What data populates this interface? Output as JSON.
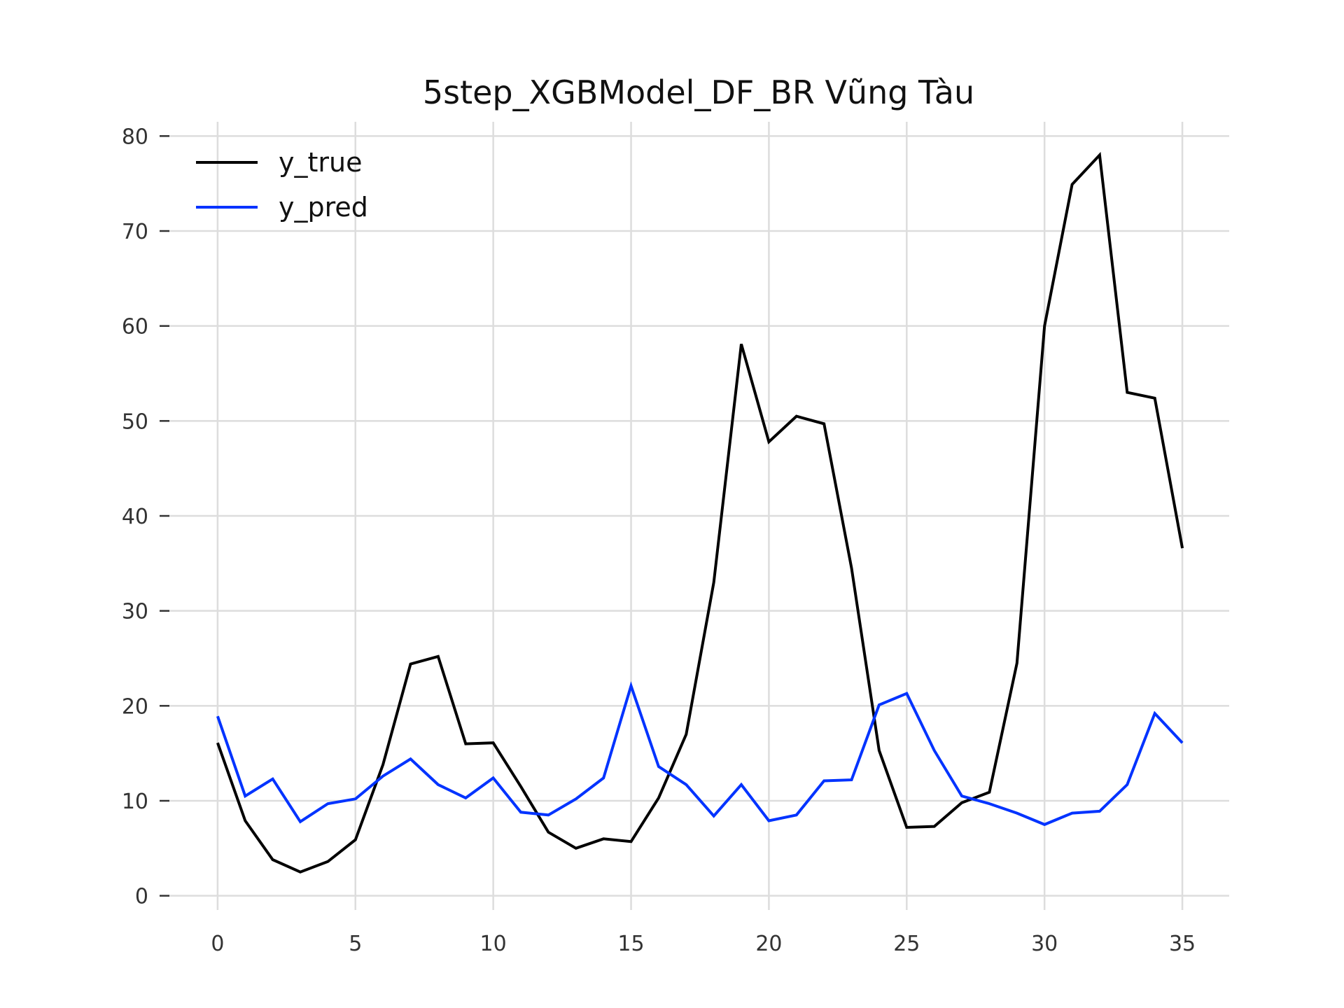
{
  "chart_data": {
    "type": "line",
    "title": "5step_XGBModel_DF_BR Vũng Tàu",
    "xlabel": "",
    "ylabel": "",
    "xlim": [
      -1.8,
      36.7
    ],
    "ylim": [
      -1.5,
      81.5
    ],
    "x_ticks": [
      0,
      5,
      10,
      15,
      20,
      25,
      30,
      35
    ],
    "y_ticks": [
      0,
      10,
      20,
      30,
      40,
      50,
      60,
      70,
      80
    ],
    "grid": true,
    "legend_position": "top-left",
    "x": [
      0,
      1,
      2,
      3,
      4,
      5,
      6,
      7,
      8,
      9,
      10,
      11,
      12,
      13,
      14,
      15,
      16,
      17,
      18,
      19,
      20,
      21,
      22,
      23,
      24,
      25,
      26,
      27,
      28,
      29,
      30,
      31,
      32,
      33,
      34,
      35
    ],
    "series": [
      {
        "name": "y_true",
        "color": "#000000",
        "values": [
          16.1,
          7.9,
          3.8,
          2.5,
          3.6,
          5.9,
          13.8,
          24.4,
          25.2,
          16.0,
          16.1,
          11.5,
          6.7,
          5.0,
          6.0,
          5.7,
          10.3,
          17.0,
          33.0,
          58.1,
          47.8,
          50.5,
          49.7,
          34.5,
          15.3,
          7.2,
          7.3,
          9.8,
          10.9,
          24.5,
          60.0,
          74.9,
          78.0,
          53.0,
          52.4,
          36.6
        ]
      },
      {
        "name": "y_pred",
        "color": "#0033ff",
        "values": [
          18.9,
          10.5,
          12.3,
          7.8,
          9.7,
          10.2,
          12.6,
          14.4,
          11.7,
          10.3,
          12.4,
          8.8,
          8.5,
          10.2,
          12.4,
          22.1,
          13.6,
          11.7,
          8.4,
          11.7,
          7.9,
          8.5,
          12.1,
          12.2,
          20.1,
          21.3,
          15.3,
          10.5,
          9.7,
          8.7,
          7.5,
          8.7,
          8.9,
          11.7,
          19.2,
          16.1
        ]
      }
    ]
  }
}
